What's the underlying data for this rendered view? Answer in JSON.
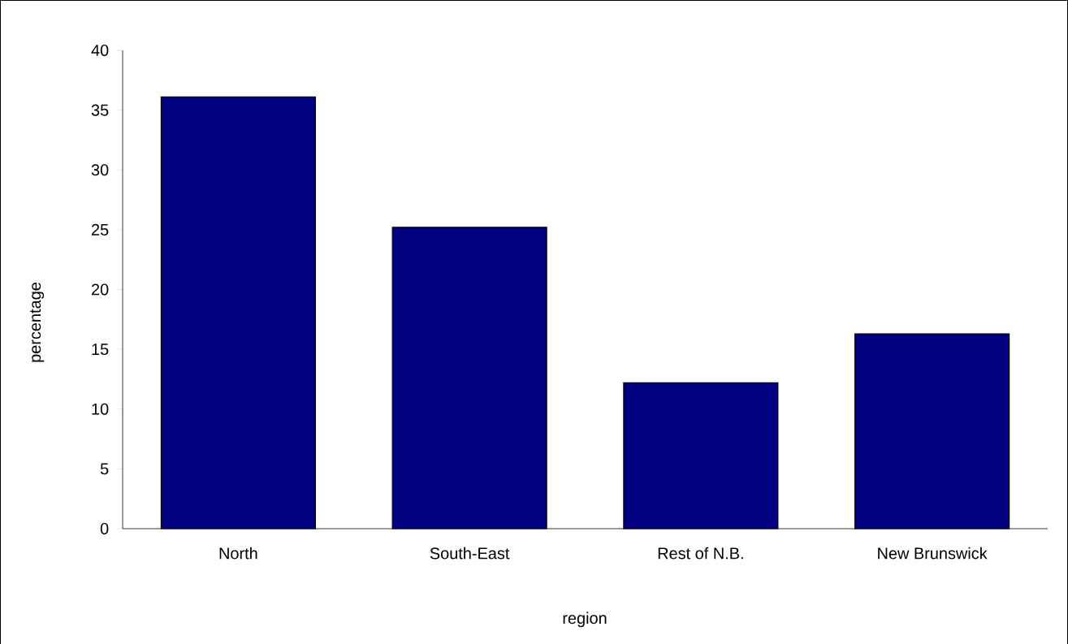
{
  "chart_data": {
    "type": "bar",
    "xlabel": "region",
    "ylabel": "percentage",
    "categories": [
      "North",
      "South-East",
      "Rest of N.B.",
      "New Brunswick"
    ],
    "values": [
      36.1,
      25.2,
      12.2,
      16.3
    ],
    "color": "#000080",
    "ylim": [
      0,
      40
    ],
    "yticks": [
      0,
      5,
      10,
      15,
      20,
      25,
      30,
      35,
      40
    ]
  }
}
